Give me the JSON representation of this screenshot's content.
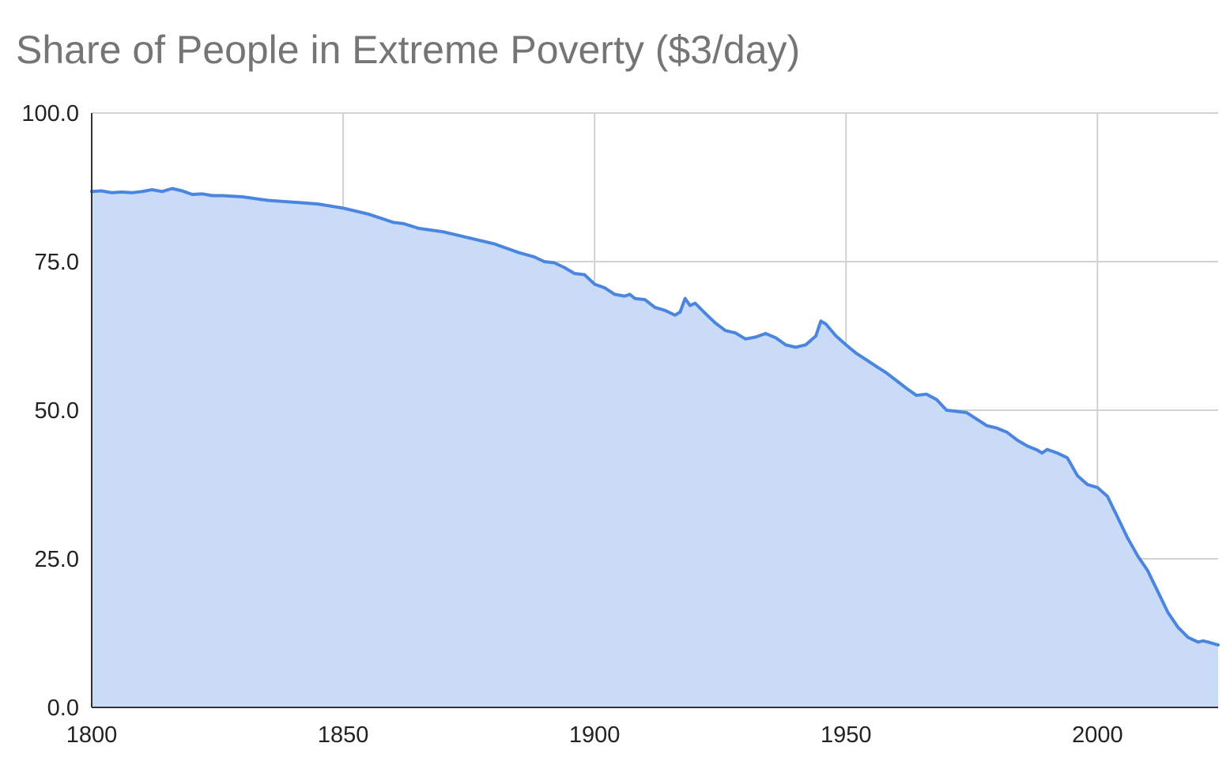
{
  "chart_data": {
    "type": "area",
    "title": "Share of People in Extreme Poverty ($3/day)",
    "xlabel": "",
    "ylabel": "",
    "xlim": [
      1800,
      2024
    ],
    "ylim": [
      0,
      100
    ],
    "x_ticks": [
      "1800",
      "1850",
      "1900",
      "1950",
      "2000"
    ],
    "y_ticks": [
      "0.0",
      "25.0",
      "50.0",
      "75.0",
      "100.0"
    ],
    "grid": true,
    "legend": "none",
    "colors": {
      "line": "#4a86e0",
      "fill": "#c9dbf7",
      "grid": "#d2d2d2",
      "axis": "#333333",
      "title": "#757575"
    },
    "series": [
      {
        "x": [
          1800,
          1802,
          1804,
          1806,
          1808,
          1810,
          1812,
          1814,
          1816,
          1818,
          1820,
          1822,
          1824,
          1826,
          1828,
          1830,
          1835,
          1840,
          1842,
          1845,
          1850,
          1855,
          1860,
          1862,
          1865,
          1870,
          1875,
          1880,
          1885,
          1888,
          1890,
          1892,
          1894,
          1896,
          1898,
          1900,
          1902,
          1904,
          1906,
          1907,
          1908,
          1910,
          1912,
          1914,
          1916,
          1917,
          1918,
          1919,
          1920,
          1922,
          1924,
          1926,
          1928,
          1930,
          1932,
          1934,
          1936,
          1938,
          1940,
          1942,
          1944,
          1945,
          1946,
          1948,
          1950,
          1952,
          1954,
          1956,
          1958,
          1960,
          1962,
          1964,
          1966,
          1968,
          1970,
          1972,
          1974,
          1976,
          1978,
          1979,
          1980,
          1982,
          1984,
          1986,
          1988,
          1989,
          1990,
          1992,
          1994,
          1996,
          1998,
          2000,
          2002,
          2004,
          2006,
          2008,
          2010,
          2012,
          2014,
          2016,
          2018,
          2020,
          2021,
          2022,
          2024
        ],
        "values": [
          86.8,
          86.9,
          86.6,
          86.7,
          86.6,
          86.8,
          87.1,
          86.8,
          87.3,
          86.9,
          86.3,
          86.4,
          86.1,
          86.1,
          86.0,
          85.9,
          85.3,
          85.0,
          84.9,
          84.7,
          84.0,
          83.0,
          81.6,
          81.4,
          80.6,
          80.0,
          79.0,
          78.0,
          76.5,
          75.8,
          75.0,
          74.8,
          74.0,
          73.0,
          72.8,
          71.2,
          70.6,
          69.5,
          69.2,
          69.5,
          68.8,
          68.6,
          67.3,
          66.8,
          66.0,
          66.5,
          68.8,
          67.6,
          68.0,
          66.3,
          64.7,
          63.4,
          63.0,
          62.0,
          62.3,
          62.9,
          62.2,
          61.0,
          60.6,
          61.0,
          62.5,
          65.0,
          64.5,
          62.5,
          61.0,
          59.6,
          58.5,
          57.4,
          56.3,
          55.0,
          53.7,
          52.5,
          52.7,
          51.8,
          50.0,
          49.8,
          49.6,
          48.5,
          47.4,
          47.2,
          47.0,
          46.3,
          45.0,
          44.0,
          43.3,
          42.8,
          43.4,
          42.8,
          42.0,
          39.0,
          37.5,
          37.0,
          35.5,
          32.0,
          28.5,
          25.5,
          23.0,
          19.5,
          16.0,
          13.5,
          11.8,
          11.0,
          11.2,
          11.0,
          10.5
        ]
      }
    ]
  }
}
